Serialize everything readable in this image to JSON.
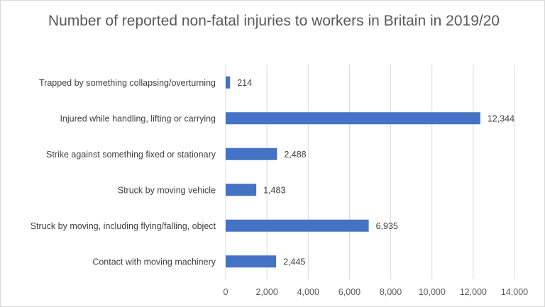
{
  "chart_data": {
    "type": "bar",
    "orientation": "horizontal",
    "title": "Number of reported non-fatal injuries to workers in Britain in 2019/20",
    "xlabel": "",
    "ylabel": "",
    "categories": [
      "Trapped by something collapsing/overturning",
      "Injured while handling, lifting or carrying",
      "Strike against something fixed or stationary",
      "Struck by moving vehicle",
      "Struck by moving, including flying/falling, object",
      "Contact with moving machinery"
    ],
    "values": [
      214,
      12344,
      2488,
      1483,
      6935,
      2445
    ],
    "value_labels": [
      "214",
      "12,344",
      "2,488",
      "1,483",
      "6,935",
      "2,445"
    ],
    "xlim": [
      0,
      14000
    ],
    "xticks": [
      0,
      2000,
      4000,
      6000,
      8000,
      10000,
      12000,
      14000
    ],
    "xtick_labels": [
      "0",
      "2,000",
      "4,000",
      "6,000",
      "8,000",
      "10,000",
      "12,000",
      "14,000"
    ],
    "grid": "vertical",
    "legend": "none",
    "bar_color": "#4472c4",
    "grid_color": "#d9d9d9"
  }
}
